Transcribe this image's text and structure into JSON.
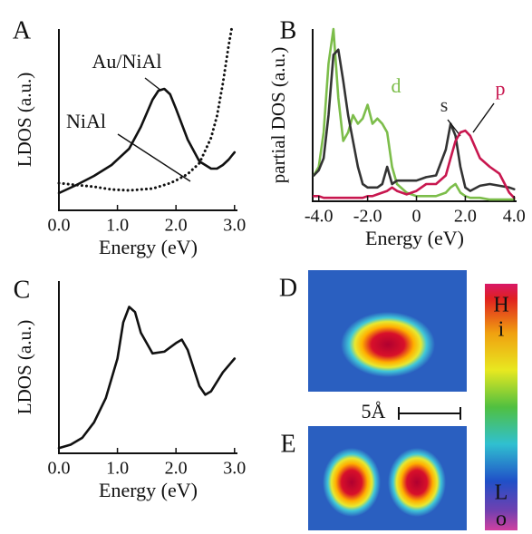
{
  "chart_data": [
    {
      "type": "line",
      "title": "A",
      "xlabel": "Energy (eV)",
      "ylabel": "LDOS (a.u.)",
      "x": [
        0,
        0.3,
        0.6,
        0.9,
        1.2,
        1.4,
        1.6,
        1.7,
        1.8,
        1.9,
        2.0,
        2.2,
        2.4,
        2.6,
        2.7,
        2.8,
        2.9,
        2.95,
        3.0
      ],
      "series": [
        {
          "name": "Au/NiAl",
          "color": "#111111",
          "style": "solid",
          "values": [
            0.95,
            1.4,
            1.9,
            2.5,
            3.4,
            4.6,
            6.1,
            6.6,
            6.7,
            6.4,
            5.6,
            3.9,
            2.7,
            2.3,
            2.3,
            2.5,
            2.8,
            3.0,
            3.2
          ]
        },
        {
          "name": "NiAl",
          "color": "#111111",
          "style": "dotted",
          "values": [
            1.5,
            1.4,
            1.3,
            1.15,
            1.1,
            1.15,
            1.2,
            1.3,
            1.4,
            1.5,
            1.65,
            2.0,
            2.6,
            4.0,
            5.2,
            7.0,
            9.1,
            10.0,
            null
          ]
        }
      ],
      "xlim": [
        0,
        3.05
      ],
      "ylim": [
        0,
        10
      ],
      "xticks": [
        {
          "value": 0,
          "label": "0.0"
        },
        {
          "value": 1,
          "label": "1.0"
        },
        {
          "value": 2,
          "label": "2.0"
        },
        {
          "value": 3,
          "label": "3.0"
        }
      ]
    },
    {
      "type": "line",
      "title": "B",
      "xlabel": "Energy (eV)",
      "ylabel": "partial DOS (a.u.)",
      "x": [
        -4.2,
        -4.0,
        -3.8,
        -3.6,
        -3.4,
        -3.2,
        -3.0,
        -2.8,
        -2.6,
        -2.4,
        -2.2,
        -2.0,
        -1.8,
        -1.6,
        -1.4,
        -1.2,
        -1.0,
        -0.8,
        -0.4,
        0,
        0.4,
        0.8,
        1.2,
        1.4,
        1.6,
        1.8,
        2.0,
        2.2,
        2.6,
        3.0,
        3.4,
        3.8,
        4.0
      ],
      "series": [
        {
          "name": "d",
          "color": "#7cbd4a",
          "style": "solid",
          "values": [
            1.5,
            2,
            4,
            8,
            10,
            6,
            3.5,
            4,
            5,
            4.5,
            4.8,
            5.6,
            4.5,
            4.8,
            4.5,
            4,
            2,
            1,
            0.5,
            0.3,
            0.3,
            0.3,
            0.5,
            0.8,
            1,
            0.5,
            0.3,
            0.2,
            0.2,
            0.1,
            0.1,
            0.1,
            0.1
          ]
        },
        {
          "name": "s",
          "color": "#333333",
          "style": "solid",
          "values": [
            1.5,
            1.8,
            2.5,
            5,
            8.5,
            8.8,
            7,
            5,
            3.5,
            2,
            1,
            0.8,
            0.8,
            0.8,
            1,
            2,
            1,
            1.2,
            1.2,
            1.2,
            1.4,
            1.5,
            3,
            4.5,
            3.8,
            2,
            0.8,
            0.6,
            0.9,
            1,
            0.9,
            0.8,
            0.7
          ]
        },
        {
          "name": "p",
          "color": "#c8174f",
          "style": "solid",
          "values": [
            0.3,
            0.3,
            0.2,
            0.2,
            0.2,
            0.2,
            0.2,
            0.2,
            0.2,
            0.2,
            0.2,
            0.3,
            0.3,
            0.4,
            0.5,
            0.6,
            0.8,
            0.6,
            0.4,
            0.6,
            1,
            1,
            1.5,
            2.5,
            3.5,
            4,
            4.1,
            3.8,
            2.5,
            2,
            1.6,
            0.5,
            0.2
          ]
        }
      ],
      "xlim": [
        -4.25,
        4.1
      ],
      "ylim": [
        0,
        10
      ],
      "xticks": [
        {
          "value": -4,
          "label": "-4.0"
        },
        {
          "value": -2,
          "label": "-2.0"
        },
        0,
        {
          "value": 2,
          "label": "2.0"
        },
        {
          "value": 4,
          "label": "4.0"
        }
      ]
    },
    {
      "type": "line",
      "title": "C",
      "xlabel": "Energy (eV)",
      "ylabel": "LDOS (a.u.)",
      "x": [
        0,
        0.2,
        0.4,
        0.6,
        0.8,
        1.0,
        1.1,
        1.2,
        1.3,
        1.4,
        1.6,
        1.8,
        2.0,
        2.1,
        2.2,
        2.4,
        2.5,
        2.6,
        2.8,
        3.0
      ],
      "series": [
        {
          "color": "#111111",
          "style": "solid",
          "values": [
            0.3,
            0.5,
            0.9,
            1.8,
            3.2,
            5.5,
            7.6,
            8.5,
            8.2,
            7.0,
            5.8,
            5.9,
            6.4,
            6.6,
            6.0,
            3.9,
            3.4,
            3.6,
            4.7,
            5.5
          ]
        }
      ],
      "xlim": [
        0,
        3.05
      ],
      "ylim": [
        0,
        10
      ],
      "xticks": [
        {
          "value": 0,
          "label": "0.0"
        },
        {
          "value": 1,
          "label": "1.0"
        },
        {
          "value": 2,
          "label": "2.0"
        },
        {
          "value": 3,
          "label": "3.0"
        }
      ]
    }
  ],
  "images": [
    {
      "label": "D"
    },
    {
      "label": "E"
    }
  ],
  "scale_bar": "5Å",
  "colorbar": {
    "high": [
      "H",
      "i"
    ],
    "low": [
      "L",
      "o"
    ]
  }
}
